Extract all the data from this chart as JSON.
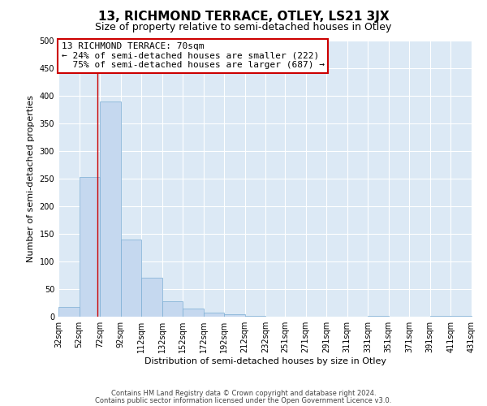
{
  "title": "13, RICHMOND TERRACE, OTLEY, LS21 3JX",
  "subtitle": "Size of property relative to semi-detached houses in Otley",
  "xlabel": "Distribution of semi-detached houses by size in Otley",
  "ylabel": "Number of semi-detached properties",
  "bar_color": "#c5d8ef",
  "bar_edge_color": "#7aadd4",
  "bg_color": "#dce9f5",
  "grid_color": "#ffffff",
  "property_line_x": 70,
  "property_sqm": 70,
  "property_label": "13 RICHMOND TERRACE: 70sqm",
  "smaller_pct": 24,
  "smaller_count": 222,
  "larger_pct": 75,
  "larger_count": 687,
  "bin_left_edges": [
    32,
    52,
    72,
    92,
    112,
    132,
    152,
    172,
    192,
    212,
    232,
    251,
    271,
    291,
    311,
    331,
    351,
    371,
    391,
    411
  ],
  "bar_heights": [
    18,
    253,
    390,
    140,
    70,
    28,
    15,
    7,
    5,
    2,
    0,
    0,
    0,
    0,
    0,
    2,
    0,
    0,
    2,
    2
  ],
  "tick_labels": [
    "32sqm",
    "52sqm",
    "72sqm",
    "92sqm",
    "112sqm",
    "132sqm",
    "152sqm",
    "172sqm",
    "192sqm",
    "212sqm",
    "232sqm",
    "251sqm",
    "271sqm",
    "291sqm",
    "311sqm",
    "331sqm",
    "351sqm",
    "371sqm",
    "391sqm",
    "411sqm",
    "431sqm"
  ],
  "ylim": [
    0,
    500
  ],
  "yticks": [
    0,
    50,
    100,
    150,
    200,
    250,
    300,
    350,
    400,
    450,
    500
  ],
  "footer1": "Contains HM Land Registry data © Crown copyright and database right 2024.",
  "footer2": "Contains public sector information licensed under the Open Government Licence v3.0.",
  "annotation_box_color": "#cc0000",
  "vline_color": "#cc0000",
  "title_fontsize": 11,
  "subtitle_fontsize": 9,
  "xlabel_fontsize": 8,
  "ylabel_fontsize": 8,
  "tick_fontsize": 7,
  "footer_fontsize": 6,
  "annotation_fontsize": 8
}
